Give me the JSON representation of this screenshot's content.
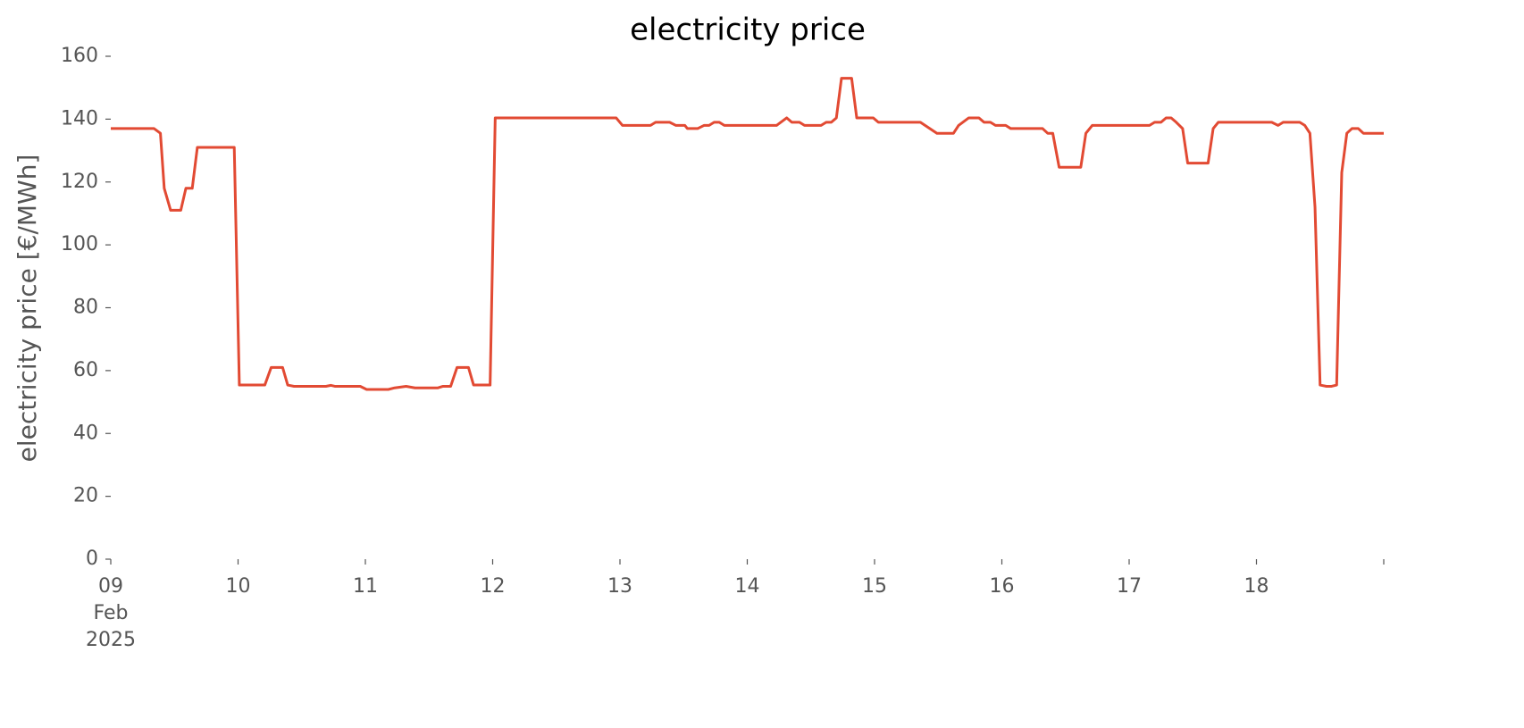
{
  "chart_data": {
    "type": "line",
    "title": "electricity price",
    "ylabel": "electricity price [€/MWh]",
    "xlim": [
      9,
      19
    ],
    "ylim": [
      0,
      160
    ],
    "yticks": [
      0,
      20,
      40,
      60,
      80,
      100,
      120,
      140,
      160
    ],
    "xticks": [
      {
        "value": 9,
        "label": "09\nFeb\n2025"
      },
      10,
      11,
      12,
      13,
      14,
      15,
      16,
      17,
      18
    ],
    "grid": false,
    "series": [
      {
        "name": "electricity price",
        "color": "#e24a33",
        "x": [
          9.0,
          9.34,
          9.39,
          9.42,
          9.47,
          9.55,
          9.59,
          9.64,
          9.68,
          9.97,
          10.01,
          10.21,
          10.26,
          10.35,
          10.39,
          10.44,
          10.69,
          10.73,
          10.76,
          10.96,
          11.01,
          11.18,
          11.23,
          11.32,
          11.39,
          11.57,
          11.61,
          11.67,
          11.72,
          11.81,
          11.85,
          11.98,
          12.02,
          12.97,
          13.02,
          13.24,
          13.28,
          13.39,
          13.44,
          13.51,
          13.53,
          13.61,
          13.66,
          13.7,
          13.74,
          13.78,
          13.82,
          14.23,
          14.31,
          14.35,
          14.41,
          14.45,
          14.58,
          14.62,
          14.66,
          14.7,
          14.74,
          14.82,
          14.86,
          14.99,
          15.03,
          15.36,
          15.49,
          15.62,
          15.66,
          15.74,
          15.82,
          15.86,
          15.91,
          15.95,
          16.03,
          16.07,
          16.32,
          16.36,
          16.4,
          16.45,
          16.62,
          16.66,
          16.71,
          17.16,
          17.2,
          17.25,
          17.29,
          17.33,
          17.37,
          17.42,
          17.46,
          17.62,
          17.66,
          17.7,
          18.12,
          18.17,
          18.21,
          18.34,
          18.38,
          18.42,
          18.46,
          18.5,
          18.55,
          18.59,
          18.63,
          18.67,
          18.71,
          18.75,
          18.8,
          18.84,
          19.0
        ],
        "values": [
          137,
          137,
          135.5,
          118,
          111,
          111,
          118,
          118,
          131,
          131,
          55.4,
          55.4,
          61,
          61,
          55.4,
          55,
          55,
          55.3,
          55,
          55,
          54,
          54,
          54.5,
          55,
          54.5,
          54.5,
          55,
          55,
          61,
          61,
          55.4,
          55.4,
          140.4,
          140.4,
          138,
          138,
          139,
          139,
          138,
          138,
          137,
          137,
          138,
          138,
          139,
          139,
          138,
          138,
          140.4,
          139,
          139,
          138,
          138,
          139,
          139,
          140.4,
          153,
          153,
          140.4,
          140.4,
          139,
          139,
          135.5,
          135.5,
          138,
          140.4,
          140.4,
          139,
          139,
          138,
          138,
          137,
          137,
          135.5,
          135.5,
          124.7,
          124.7,
          135.5,
          138,
          138,
          139,
          139,
          140.4,
          140.4,
          139,
          137,
          126,
          126,
          137,
          139,
          139,
          138,
          139,
          139,
          138,
          135.5,
          112,
          55.4,
          55,
          55,
          55.4,
          123,
          135.5,
          137,
          137,
          135.5,
          135.5
        ]
      }
    ]
  }
}
